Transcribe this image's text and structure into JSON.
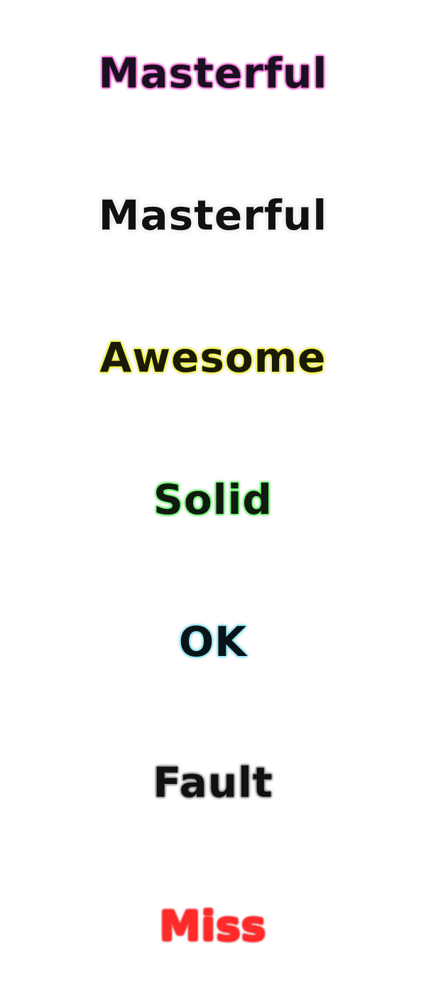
{
  "judgments": [
    {
      "label": "Masterful",
      "text_color": "#1a1020",
      "glow_color": "#ff66dd"
    },
    {
      "label": "Masterful",
      "text_color": "#111111",
      "glow_color": "#ffffff"
    },
    {
      "label": "Awesome",
      "text_color": "#1a1a08",
      "glow_color": "#ffff33"
    },
    {
      "label": "Solid",
      "text_color": "#101a10",
      "glow_color": "#66ff66"
    },
    {
      "label": "OK",
      "text_color": "#0a1418",
      "glow_color": "#88eeff"
    },
    {
      "label": "Fault",
      "text_color": "#111111",
      "glow_color": "#9a9a9a"
    },
    {
      "label": "Miss",
      "text_color": "#ff2a2a",
      "glow_color": "#ff3333"
    }
  ]
}
